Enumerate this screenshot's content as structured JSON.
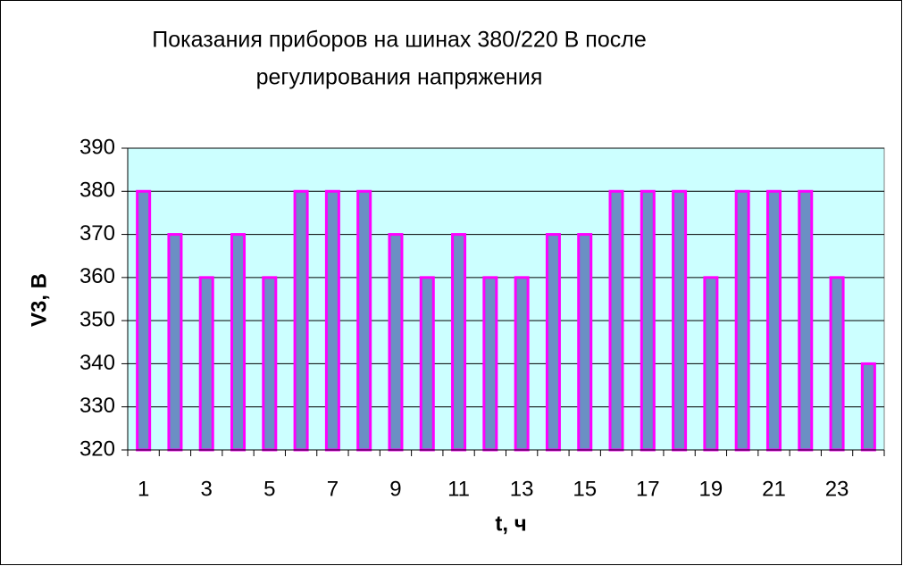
{
  "chart_data": {
    "type": "bar",
    "title": [
      "Показания приборов на шинах 380/220  В после",
      "регулирования напряжения"
    ],
    "x_label": "t, ч",
    "y_label": "V3, В",
    "categories": [
      1,
      null,
      3,
      null,
      5,
      null,
      7,
      null,
      9,
      null,
      11,
      null,
      13,
      null,
      15,
      null,
      17,
      null,
      19,
      null,
      21,
      null,
      23,
      null
    ],
    "values": [
      380,
      370,
      360,
      370,
      360,
      380,
      380,
      380,
      370,
      360,
      370,
      360,
      360,
      370,
      370,
      380,
      380,
      380,
      360,
      380,
      380,
      380,
      360,
      340
    ],
    "color": "#6b8fc4",
    "edge_color": "#ff00ff",
    "plot_background": "#ccffff",
    "ylim": [
      320,
      390
    ],
    "yticks": [
      320,
      330,
      340,
      350,
      360,
      370,
      380,
      390
    ],
    "grid": true
  }
}
